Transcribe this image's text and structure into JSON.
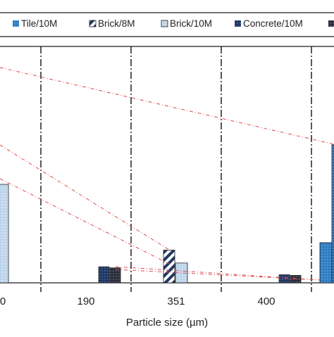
{
  "chart_data": {
    "type": "bar",
    "xlabel": "Particle size (µm)",
    "ylabel": "",
    "title": "",
    "visible_tick_labels": [
      "0",
      "190",
      "351",
      "400"
    ],
    "legend": {
      "placement": "top",
      "entries": [
        {
          "name": "Tile/10M",
          "color": "#2f7cc3",
          "pattern": "dotted"
        },
        {
          "name": "Brick/8M",
          "color": "#1f3864",
          "pattern": "diagonal-hatch"
        },
        {
          "name": "Brick/10M",
          "color": "#c9dcef",
          "pattern": "dotted"
        },
        {
          "name": "Concrete/10M",
          "color": "#203864",
          "pattern": "dotted"
        },
        {
          "name": "",
          "color": "#2b2f3a",
          "pattern": "dotted"
        }
      ]
    },
    "relative_values_pct": [
      {
        "group": "0",
        "series": "Brick/10M",
        "value": 100
      },
      {
        "group": "190",
        "series": "Concrete/10M",
        "value": 16.3
      },
      {
        "group": "190",
        "series": "",
        "value": 15.2
      },
      {
        "group": "351",
        "series": "Brick/8M",
        "value": 33.2
      },
      {
        "group": "351",
        "series": "Brick/10M",
        "value": 20.1
      },
      {
        "group": "400",
        "series": "Concrete/10M",
        "value": 8.2
      },
      {
        "group": "400",
        "series": "",
        "value": 7.6
      },
      {
        "group": "partial-right",
        "series": "Tile/10M",
        "value": 40.8
      },
      {
        "group": "partial-right",
        "series": "Tile/10M",
        "value": 140.2
      }
    ],
    "grid": "vertical dash-dot separators",
    "connector_lines": "red dash-dot lines between bars"
  },
  "axis": {
    "xlabel": "Particle size (µm)"
  }
}
